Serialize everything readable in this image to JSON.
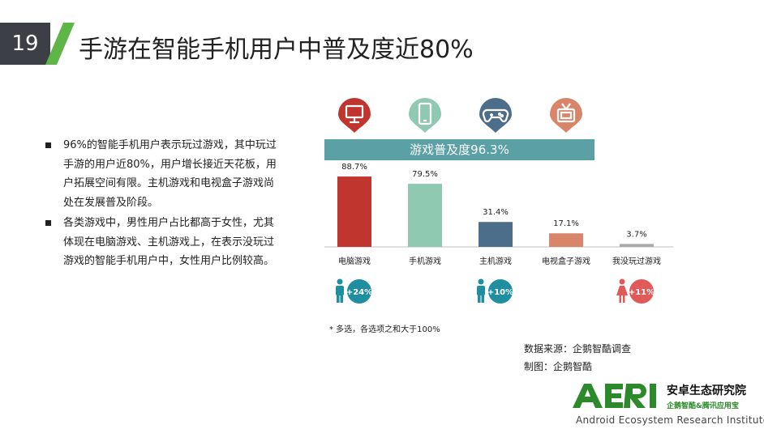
{
  "page": {
    "number": "19",
    "title": "手游在智能手机用户中普及度近80%"
  },
  "bullets": [
    "96%的智能手机用户表示玩过游戏，其中玩过手游的用户近80%，用户增长接近天花板，用户拓展空间有限。主机游戏和电视盒子游戏尚处在发展普及阶段。",
    "各类游戏中，男性用户占比都高于女性，尤其体现在电脑游戏、主机游戏上，在表示没玩过游戏的智能手机用户中，女性用户比例较高。"
  ],
  "chart_data": {
    "type": "bar",
    "title": "游戏普及度96.3%",
    "categories": [
      "电脑游戏",
      "手机游戏",
      "主机游戏",
      "电视盒子游戏",
      "我没玩过游戏"
    ],
    "values": [
      88.7,
      79.5,
      31.4,
      17.1,
      3.7
    ],
    "value_labels": [
      "88.7%",
      "79.5%",
      "31.4%",
      "17.1%",
      "3.7%"
    ],
    "unit": "%",
    "colors": [
      "#c0362f",
      "#8fc9b1",
      "#4d6e8a",
      "#d9856a",
      "#aaaaaa"
    ],
    "icons": [
      "computer-icon",
      "smartphone-icon",
      "gamepad-icon",
      "tv-icon",
      null
    ],
    "icon_colors": [
      "#c0362f",
      "#8fc9b1",
      "#4d6e8a",
      "#d9856a"
    ],
    "gender_badges": [
      {
        "category": "电脑游戏",
        "gender": "male",
        "label": "+24%",
        "color": "#1e8ea0"
      },
      {
        "category": "主机游戏",
        "gender": "male",
        "label": "+10%",
        "color": "#1e8ea0"
      },
      {
        "category": "我没玩过游戏",
        "gender": "female",
        "label": "+11%",
        "color": "#e05a5a"
      }
    ],
    "ylim": [
      0,
      100
    ],
    "grid": false
  },
  "footnote": "*   多选，各选项之和大于100%",
  "source": "数据来源：企鹅智酷调查",
  "maker": "制图：企鹅智酷",
  "logo": {
    "cn": "安卓生态研究院",
    "sub": "企鹅智酷&腾讯应用宝",
    "en": "Android Ecosystem Research Institute",
    "accent": "#2d8a2a"
  }
}
